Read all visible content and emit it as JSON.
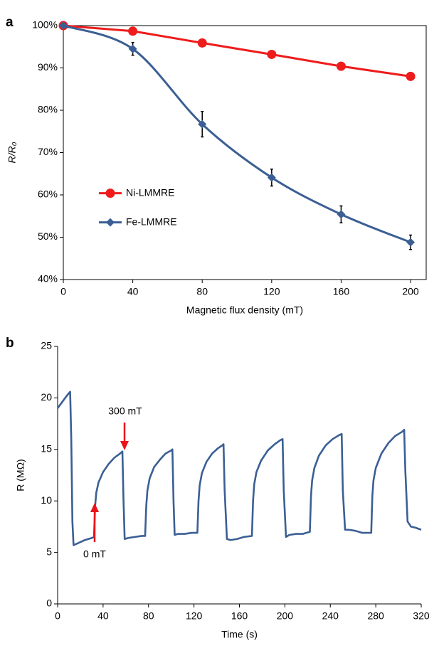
{
  "chart_data": [
    {
      "type": "line",
      "panel": "a",
      "xlabel": "Magnetic flux density  (mT)",
      "ylabel": "R/R₀",
      "x": [
        0,
        40,
        80,
        120,
        160,
        200
      ],
      "series": [
        {
          "name": "Ni-LMMRE",
          "color": "#ee1c1c",
          "marker": "circle",
          "values": [
            100,
            98.7,
            95.9,
            93.2,
            90.4,
            88.0
          ]
        },
        {
          "name": "Fe-LMMRE",
          "color": "#3b5f94",
          "marker": "diamond",
          "smooth": true,
          "values": [
            100,
            94.5,
            76.7,
            64.1,
            55.4,
            48.8
          ],
          "errors": [
            null,
            1.5,
            3.0,
            2.0,
            2.0,
            1.7
          ]
        }
      ],
      "xlim": [
        0,
        209
      ],
      "xticks": [
        0,
        40,
        80,
        120,
        160,
        200
      ],
      "ylim": [
        40,
        100
      ],
      "yticks": [
        {
          "value": 40,
          "label": "40%"
        },
        {
          "value": 50,
          "label": "50%"
        },
        {
          "value": 60,
          "label": "60%"
        },
        {
          "value": 70,
          "label": "70%"
        },
        {
          "value": 80,
          "label": "80%"
        },
        {
          "value": 90,
          "label": "90%"
        },
        {
          "value": 100,
          "label": "100%"
        }
      ],
      "frame": "box",
      "legend": "center left"
    },
    {
      "type": "line",
      "panel": "b",
      "xlabel": "Time (s)",
      "ylabel": "R (MΩ)",
      "annotations": [
        "300 mT",
        "0 mT"
      ],
      "x": [
        0,
        4,
        8,
        11,
        12,
        13,
        14,
        18,
        24,
        30,
        32,
        33,
        34,
        36,
        40,
        45,
        50,
        55,
        57,
        58,
        59,
        62,
        68,
        74,
        77,
        78,
        79,
        81,
        85,
        90,
        95,
        100,
        101,
        102,
        103,
        106,
        112,
        118,
        123,
        124,
        125,
        127,
        131,
        136,
        141,
        145,
        146,
        147,
        149,
        152,
        158,
        164,
        171,
        172,
        173,
        175,
        179,
        185,
        191,
        196,
        198,
        199,
        201,
        204,
        210,
        216,
        222,
        223,
        224,
        226,
        230,
        236,
        242,
        248,
        250,
        251,
        253,
        256,
        262,
        268,
        276,
        277,
        278,
        280,
        285,
        291,
        297,
        303,
        305,
        306,
        308,
        311,
        315,
        320
      ],
      "series": [
        {
          "name": "R",
          "color": "#3b5f94",
          "values": [
            19.0,
            19.6,
            20.2,
            20.6,
            16,
            8,
            5.7,
            5.9,
            6.2,
            6.4,
            6.5,
            9.5,
            10.8,
            11.8,
            12.8,
            13.6,
            14.2,
            14.6,
            14.8,
            10,
            6.3,
            6.4,
            6.5,
            6.6,
            6.6,
            9.5,
            11,
            12.2,
            13.3,
            14.0,
            14.6,
            14.9,
            15.0,
            10,
            6.7,
            6.8,
            6.8,
            6.9,
            6.9,
            10,
            11.5,
            12.7,
            13.8,
            14.6,
            15.1,
            15.4,
            15.5,
            11,
            6.3,
            6.2,
            6.3,
            6.5,
            6.6,
            10,
            11.6,
            12.8,
            13.9,
            14.9,
            15.5,
            15.9,
            16.0,
            11,
            6.5,
            6.7,
            6.8,
            6.8,
            7.0,
            10.5,
            12,
            13.2,
            14.4,
            15.4,
            16.0,
            16.4,
            16.5,
            11,
            7.2,
            7.2,
            7.1,
            6.9,
            6.9,
            10.5,
            12,
            13.2,
            14.6,
            15.6,
            16.3,
            16.7,
            16.9,
            13,
            8,
            7.5,
            7.4,
            7.2
          ]
        }
      ],
      "xlim": [
        0,
        320
      ],
      "xticks": [
        0,
        40,
        80,
        120,
        160,
        200,
        240,
        280,
        320
      ],
      "ylim": [
        0,
        25
      ],
      "yticks": [
        0,
        5,
        10,
        15,
        20,
        25
      ],
      "frame": "axes"
    }
  ]
}
